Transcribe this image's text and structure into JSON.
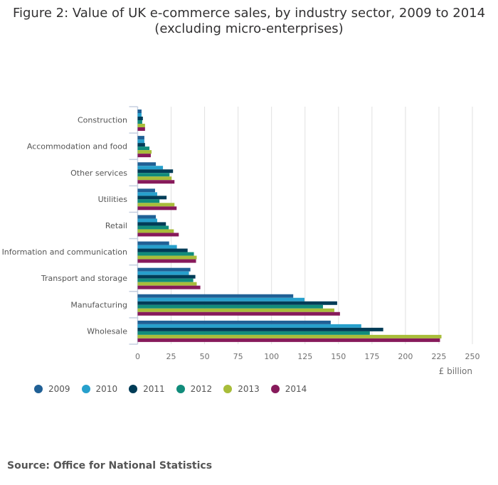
{
  "chart_data": {
    "type": "bar",
    "orientation": "horizontal",
    "title": "Figure 2: Value of UK e-commerce sales, by industry sector, 2009 to 2014",
    "subtitle": "(excluding micro-enterprises)",
    "xlabel": "£ billion",
    "xlim": [
      0,
      250
    ],
    "xticks": [
      0,
      25,
      50,
      75,
      100,
      125,
      150,
      175,
      200,
      225,
      250
    ],
    "grid": true,
    "legend_position": "bottom-left",
    "categories": [
      "Construction",
      "Accommodation and food",
      "Other services",
      "Utilities",
      "Retail",
      "Information and communication",
      "Transport and storage",
      "Manufacturing",
      "Wholesale"
    ],
    "series": [
      {
        "name": "2009",
        "color": "#206095",
        "values": [
          2.9,
          5.0,
          13.6,
          13.0,
          13.6,
          23.5,
          39.4,
          116.2,
          144.2
        ]
      },
      {
        "name": "2010",
        "color": "#27a0cc",
        "values": [
          2.9,
          5.0,
          18.9,
          14.6,
          14.6,
          29.3,
          38.3,
          124.6,
          167.0
        ]
      },
      {
        "name": "2011",
        "color": "#003c57",
        "values": [
          3.9,
          5.5,
          26.4,
          21.6,
          21.1,
          37.3,
          43.1,
          149.0,
          183.4
        ]
      },
      {
        "name": "2012",
        "color": "#118c7b",
        "values": [
          3.4,
          8.8,
          23.8,
          16.3,
          23.2,
          42.0,
          41.5,
          138.4,
          173.4
        ]
      },
      {
        "name": "2013",
        "color": "#a8bd3a",
        "values": [
          5.5,
          10.4,
          25.4,
          27.5,
          27.0,
          44.1,
          44.1,
          146.9,
          226.9
        ]
      },
      {
        "name": "2014",
        "color": "#871a5b",
        "values": [
          5.5,
          9.8,
          27.5,
          29.1,
          30.7,
          43.6,
          46.8,
          151.1,
          225.8
        ]
      }
    ]
  },
  "source": "Source: Office for National Statistics"
}
